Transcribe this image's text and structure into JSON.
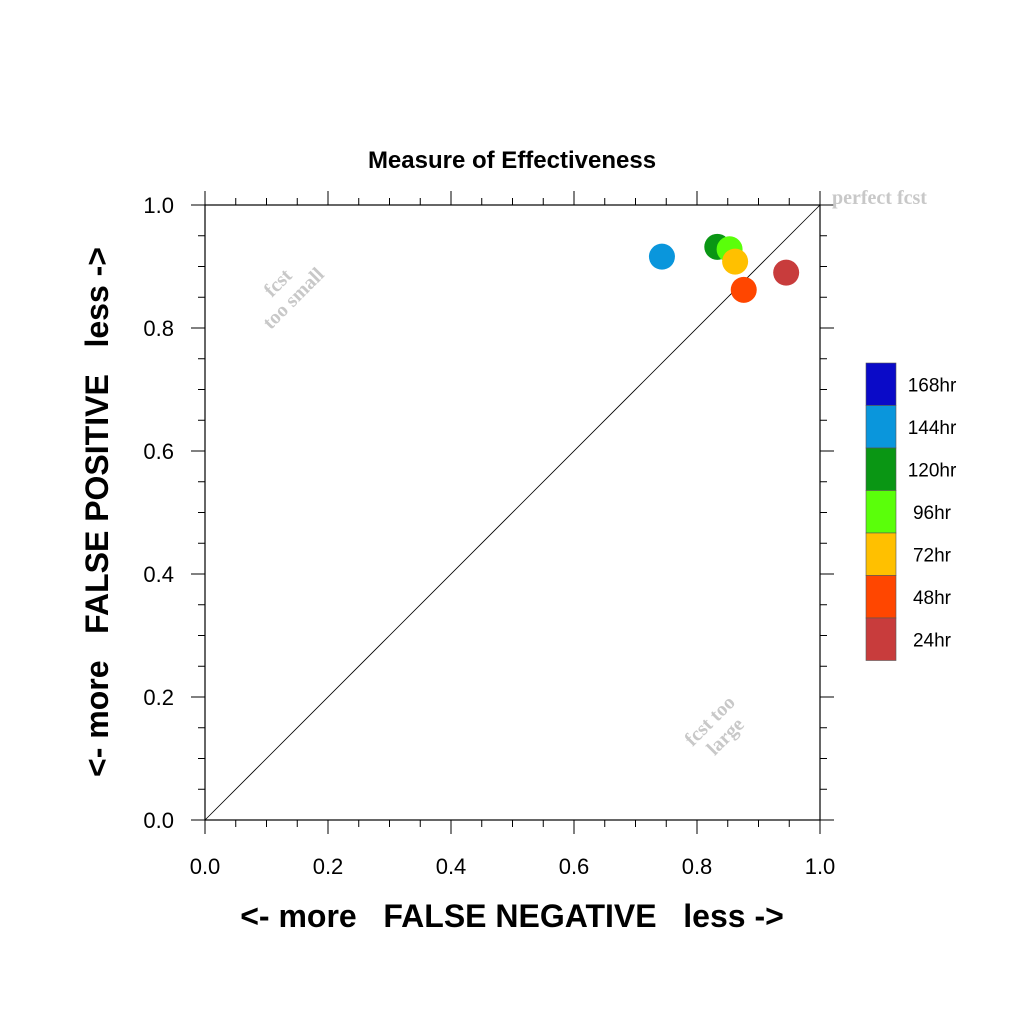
{
  "chart_data": {
    "type": "scatter",
    "title": "Measure of Effectiveness",
    "xlabel": "<- more   FALSE NEGATIVE   less ->",
    "ylabel": "<- more   FALSE POSITIVE   less ->",
    "xlim": [
      0,
      1
    ],
    "ylim": [
      0,
      1
    ],
    "x_ticks": [
      "0.0",
      "0.2",
      "0.4",
      "0.6",
      "0.8",
      "1.0"
    ],
    "y_ticks": [
      "0.0",
      "0.2",
      "0.4",
      "0.6",
      "0.8",
      "1.0"
    ],
    "grid": false,
    "diagonal_line": true,
    "legend_position": "right",
    "annotations": {
      "perfect": "perfect fcst",
      "too_small_line1": "fcst",
      "too_small_line2": "too small",
      "too_large_line1": "fcst too",
      "too_large_line2": "large"
    },
    "series": [
      {
        "name": "168hr",
        "color": "#0a0ac8",
        "points": []
      },
      {
        "name": "144hr",
        "color": "#0a96dc",
        "points": [
          [
            0.743,
            0.916
          ]
        ]
      },
      {
        "name": "120hr",
        "color": "#0a9614",
        "points": [
          [
            0.833,
            0.932
          ]
        ]
      },
      {
        "name": "96hr",
        "color": "#5aff0a",
        "points": [
          [
            0.853,
            0.928
          ]
        ]
      },
      {
        "name": "72hr",
        "color": "#ffc000",
        "points": [
          [
            0.862,
            0.908
          ]
        ]
      },
      {
        "name": "48hr",
        "color": "#ff4600",
        "points": [
          [
            0.876,
            0.862
          ]
        ]
      },
      {
        "name": "24hr",
        "color": "#c83c3c",
        "points": [
          [
            0.945,
            0.89
          ]
        ]
      }
    ]
  }
}
